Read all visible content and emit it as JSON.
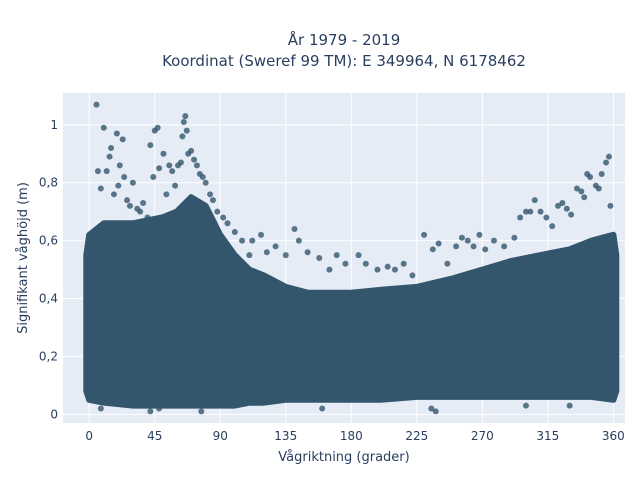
{
  "chart_data": {
    "type": "scatter",
    "title": "År 1979 - 2019",
    "subtitle": "Koordinat (Sweref 99 TM): E 349964, N 6178462",
    "xlabel": "Vågriktning (grader)",
    "ylabel": "Signifikant våghöjd (m)",
    "xlim": [
      -18,
      368
    ],
    "ylim": [
      -0.03,
      1.11
    ],
    "xticks": [
      0,
      45,
      90,
      135,
      180,
      225,
      270,
      315,
      360
    ],
    "xtick_labels": [
      "0",
      "45",
      "90",
      "135",
      "180",
      "225",
      "270",
      "315",
      "360"
    ],
    "yticks": [
      0,
      0.2,
      0.4,
      0.6,
      0.8,
      1
    ],
    "ytick_labels": [
      "0",
      "0,2",
      "0,4",
      "0,6",
      "0,8",
      "1"
    ],
    "grid": true,
    "background": "#e5ecf6",
    "marker_color": "#34566d",
    "dense_band": {
      "x": [
        -2,
        0,
        10,
        30,
        50,
        60,
        70,
        80,
        90,
        100,
        110,
        120,
        135,
        150,
        165,
        180,
        200,
        225,
        250,
        270,
        290,
        310,
        330,
        345,
        360,
        362
      ],
      "y_low": [
        0.08,
        0.05,
        0.04,
        0.03,
        0.03,
        0.03,
        0.03,
        0.03,
        0.03,
        0.03,
        0.04,
        0.04,
        0.05,
        0.05,
        0.05,
        0.05,
        0.05,
        0.06,
        0.06,
        0.06,
        0.06,
        0.06,
        0.06,
        0.06,
        0.05,
        0.08
      ],
      "y_high": [
        0.55,
        0.62,
        0.66,
        0.66,
        0.68,
        0.7,
        0.75,
        0.72,
        0.62,
        0.55,
        0.5,
        0.48,
        0.44,
        0.42,
        0.42,
        0.42,
        0.43,
        0.44,
        0.47,
        0.5,
        0.53,
        0.55,
        0.57,
        0.6,
        0.62,
        0.55
      ]
    },
    "points": [
      [
        5,
        1.07
      ],
      [
        6,
        0.84
      ],
      [
        8,
        0.78
      ],
      [
        10,
        0.99
      ],
      [
        12,
        0.84
      ],
      [
        14,
        0.89
      ],
      [
        15,
        0.92
      ],
      [
        17,
        0.76
      ],
      [
        19,
        0.97
      ],
      [
        20,
        0.79
      ],
      [
        21,
        0.86
      ],
      [
        23,
        0.95
      ],
      [
        24,
        0.82
      ],
      [
        26,
        0.74
      ],
      [
        28,
        0.72
      ],
      [
        30,
        0.8
      ],
      [
        33,
        0.71
      ],
      [
        35,
        0.7
      ],
      [
        37,
        0.73
      ],
      [
        40,
        0.68
      ],
      [
        42,
        0.93
      ],
      [
        44,
        0.82
      ],
      [
        45,
        0.98
      ],
      [
        47,
        0.99
      ],
      [
        48,
        0.85
      ],
      [
        51,
        0.9
      ],
      [
        53,
        0.76
      ],
      [
        55,
        0.86
      ],
      [
        57,
        0.84
      ],
      [
        59,
        0.79
      ],
      [
        61,
        0.86
      ],
      [
        63,
        0.87
      ],
      [
        64,
        0.96
      ],
      [
        65,
        1.01
      ],
      [
        66,
        1.03
      ],
      [
        67,
        0.98
      ],
      [
        68,
        0.9
      ],
      [
        70,
        0.91
      ],
      [
        72,
        0.88
      ],
      [
        74,
        0.86
      ],
      [
        76,
        0.83
      ],
      [
        78,
        0.82
      ],
      [
        80,
        0.8
      ],
      [
        83,
        0.76
      ],
      [
        85,
        0.74
      ],
      [
        88,
        0.7
      ],
      [
        92,
        0.68
      ],
      [
        95,
        0.66
      ],
      [
        100,
        0.63
      ],
      [
        105,
        0.6
      ],
      [
        110,
        0.55
      ],
      [
        112,
        0.6
      ],
      [
        118,
        0.62
      ],
      [
        122,
        0.56
      ],
      [
        128,
        0.58
      ],
      [
        135,
        0.55
      ],
      [
        141,
        0.64
      ],
      [
        144,
        0.6
      ],
      [
        150,
        0.56
      ],
      [
        158,
        0.54
      ],
      [
        165,
        0.5
      ],
      [
        170,
        0.55
      ],
      [
        176,
        0.52
      ],
      [
        185,
        0.55
      ],
      [
        190,
        0.52
      ],
      [
        198,
        0.5
      ],
      [
        205,
        0.51
      ],
      [
        210,
        0.5
      ],
      [
        216,
        0.52
      ],
      [
        222,
        0.48
      ],
      [
        230,
        0.62
      ],
      [
        236,
        0.57
      ],
      [
        240,
        0.59
      ],
      [
        246,
        0.52
      ],
      [
        252,
        0.58
      ],
      [
        256,
        0.61
      ],
      [
        260,
        0.6
      ],
      [
        264,
        0.58
      ],
      [
        268,
        0.62
      ],
      [
        272,
        0.57
      ],
      [
        278,
        0.6
      ],
      [
        285,
        0.58
      ],
      [
        292,
        0.61
      ],
      [
        296,
        0.68
      ],
      [
        300,
        0.7
      ],
      [
        303,
        0.7
      ],
      [
        306,
        0.74
      ],
      [
        310,
        0.7
      ],
      [
        314,
        0.68
      ],
      [
        318,
        0.65
      ],
      [
        322,
        0.72
      ],
      [
        325,
        0.73
      ],
      [
        328,
        0.71
      ],
      [
        331,
        0.69
      ],
      [
        335,
        0.78
      ],
      [
        338,
        0.77
      ],
      [
        340,
        0.75
      ],
      [
        342,
        0.83
      ],
      [
        344,
        0.82
      ],
      [
        348,
        0.79
      ],
      [
        350,
        0.78
      ],
      [
        352,
        0.83
      ],
      [
        355,
        0.87
      ],
      [
        357,
        0.89
      ],
      [
        358,
        0.72
      ],
      [
        8,
        0.02
      ],
      [
        42,
        0.01
      ],
      [
        48,
        0.02
      ],
      [
        77,
        0.01
      ],
      [
        160,
        0.02
      ],
      [
        235,
        0.02
      ],
      [
        238,
        0.01
      ],
      [
        300,
        0.03
      ],
      [
        330,
        0.03
      ]
    ]
  }
}
